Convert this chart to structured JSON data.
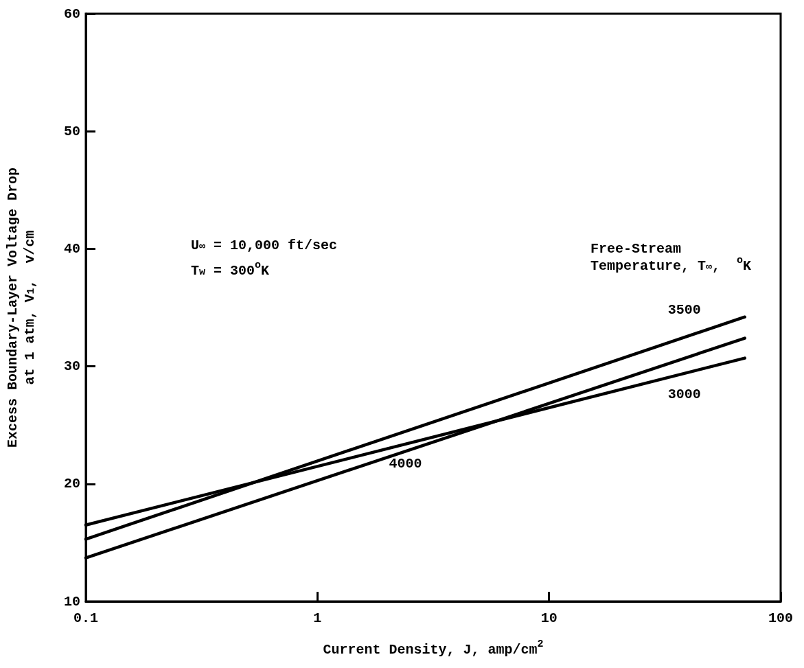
{
  "chart_data": {
    "type": "line",
    "xlabel": "Current Density, J, amp/cm$^{2}$",
    "ylabel": "Excess Boundary-Layer Voltage Drop\nat 1 atm, V$_{1}$,  v/cm",
    "legend_title": "Free-Stream\nTemperature, T$_{∞}$,  $^{o}$K",
    "annotations": [
      "U$_{∞}$ = 10,000 ft/sec",
      "T$_{w}$ = 300$^{o}$K"
    ],
    "x": [
      0.1,
      70
    ],
    "log": "x",
    "xlim": [
      0.1,
      100
    ],
    "xticks": [
      0.1,
      1,
      10,
      100
    ],
    "ylim": [
      10,
      60
    ],
    "yticks": [
      10,
      20,
      30,
      40,
      50,
      60
    ],
    "grid": false,
    "marker": "none",
    "line_style": "solid",
    "series": [
      {
        "name": "3500",
        "color": "#000000",
        "values": [
          15.3,
          34.2
        ]
      },
      {
        "name": "4000",
        "color": "#000000",
        "values": [
          13.7,
          32.4
        ]
      },
      {
        "name": "3000",
        "color": "#000000",
        "values": [
          16.5,
          30.7
        ]
      }
    ]
  }
}
